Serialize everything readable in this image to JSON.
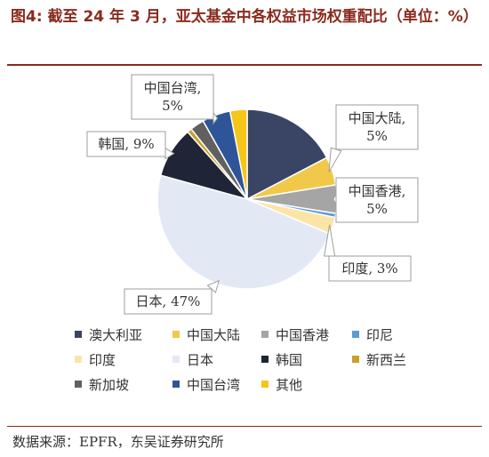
{
  "title": "图4:  截至 24 年 3 月，亚太基金中各权益市场权重配比（单位：%）",
  "source": "数据来源：EPFR，东吴证券研究所",
  "chart_data": {
    "type": "pie",
    "title": "",
    "slices": [
      {
        "name": "澳大利亚",
        "value": 17,
        "color": "#3a4565"
      },
      {
        "name": "中国大陆",
        "value": 5,
        "color": "#f2c84b"
      },
      {
        "name": "中国香港",
        "value": 5,
        "color": "#a5a5a5"
      },
      {
        "name": "印尼",
        "value": 0.7,
        "color": "#5b9bd5"
      },
      {
        "name": "印度",
        "value": 3,
        "color": "#fbe5a6"
      },
      {
        "name": "日本",
        "value": 47,
        "color": "#e3e9f4"
      },
      {
        "name": "韩国",
        "value": 9,
        "color": "#1f2536"
      },
      {
        "name": "新西兰",
        "value": 0.8,
        "color": "#c9a02a"
      },
      {
        "name": "新加坡",
        "value": 2.5,
        "color": "#606060"
      },
      {
        "name": "中国台湾",
        "value": 5,
        "color": "#2e5597"
      },
      {
        "name": "其他",
        "value": 3,
        "color": "#f5c518"
      }
    ],
    "callouts": [
      {
        "slice": "中国台湾",
        "lines": [
          "中国台湾,",
          "5%"
        ]
      },
      {
        "slice": "中国大陆",
        "lines": [
          "中国大陆,",
          "5%"
        ]
      },
      {
        "slice": "韩国",
        "lines": [
          "韩国, 9%"
        ]
      },
      {
        "slice": "中国香港",
        "lines": [
          "中国香港,",
          "5%"
        ]
      },
      {
        "slice": "印度",
        "lines": [
          "印度, 3%"
        ]
      },
      {
        "slice": "日本",
        "lines": [
          "日本, 47%"
        ]
      }
    ],
    "legend_position": "bottom",
    "legend_rows": [
      [
        "澳大利亚",
        "中国大陆",
        "中国香港",
        "印尼"
      ],
      [
        "印度",
        "日本",
        "韩国",
        "新西兰"
      ],
      [
        "新加坡",
        "中国台湾",
        "其他"
      ]
    ]
  }
}
